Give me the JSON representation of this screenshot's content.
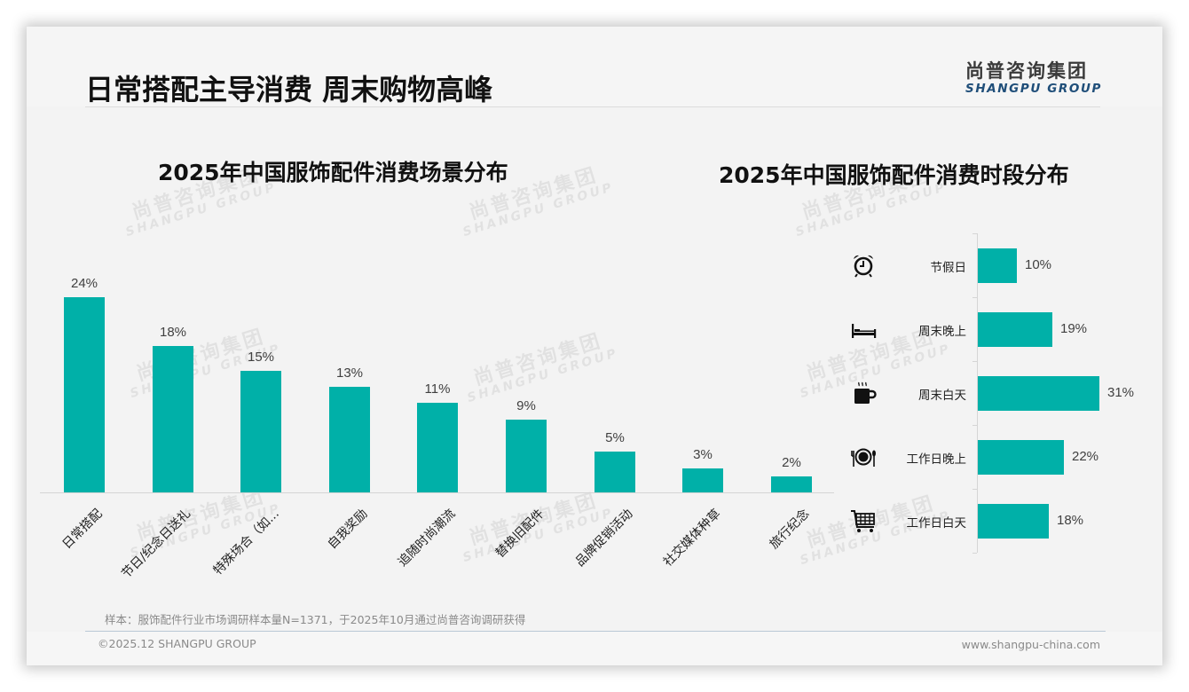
{
  "header": {
    "title": "日常搭配主导消费 周末购物高峰",
    "logo_cn": "尚普咨询集团",
    "logo_en": "SHANGPU GROUP"
  },
  "watermark": {
    "cn": "尚普咨询集团",
    "en": "SHANGPU GROUP"
  },
  "colors": {
    "bar": "#00B0A8",
    "logo_en": "#1F4E79",
    "text_dark": "#111111",
    "text_muted": "#8A8A8A"
  },
  "left_chart": {
    "title": "2025年中国服饰配件消费场景分布",
    "bars": [
      {
        "label": "日常搭配",
        "value": 24,
        "display": "24%"
      },
      {
        "label": "节日/纪念日送礼",
        "value": 18,
        "display": "18%"
      },
      {
        "label": "特殊场合（如...",
        "value": 15,
        "display": "15%"
      },
      {
        "label": "自我奖励",
        "value": 13,
        "display": "13%"
      },
      {
        "label": "追随时尚潮流",
        "value": 11,
        "display": "11%"
      },
      {
        "label": "替换旧配件",
        "value": 9,
        "display": "9%"
      },
      {
        "label": "品牌促销活动",
        "value": 5,
        "display": "5%"
      },
      {
        "label": "社交媒体种草",
        "value": 3,
        "display": "3%"
      },
      {
        "label": "旅行纪念",
        "value": 2,
        "display": "2%"
      }
    ]
  },
  "right_chart": {
    "title": "2025年中国服饰配件消费时段分布",
    "bars": [
      {
        "label": "节假日",
        "value": 10,
        "display": "10%",
        "icon": "alarm-clock-icon"
      },
      {
        "label": "周末晚上",
        "value": 19,
        "display": "19%",
        "icon": "bed-icon"
      },
      {
        "label": "周末白天",
        "value": 31,
        "display": "31%",
        "icon": "coffee-mug-icon"
      },
      {
        "label": "工作日晚上",
        "value": 22,
        "display": "22%",
        "icon": "plate-cutlery-icon"
      },
      {
        "label": "工作日白天",
        "value": 18,
        "display": "18%",
        "icon": "shopping-cart-icon"
      }
    ]
  },
  "footer": {
    "note": "样本：服饰配件行业市场调研样本量N=1371，于2025年10月通过尚普咨询调研获得",
    "copyright": "©2025.12 SHANGPU GROUP",
    "website": "www.shangpu-china.com"
  },
  "chart_data": [
    {
      "type": "bar",
      "title": "2025年中国服饰配件消费场景分布",
      "categories": [
        "日常搭配",
        "节日/纪念日送礼",
        "特殊场合（如...",
        "自我奖励",
        "追随时尚潮流",
        "替换旧配件",
        "品牌促销活动",
        "社交媒体种草",
        "旅行纪念"
      ],
      "values": [
        24,
        18,
        15,
        13,
        11,
        9,
        5,
        3,
        2
      ],
      "unit": "%",
      "xlabel": "",
      "ylabel": "",
      "orientation": "vertical",
      "grid": false,
      "data_labels": true,
      "color": "#00B0A8"
    },
    {
      "type": "bar",
      "title": "2025年中国服饰配件消费时段分布",
      "categories": [
        "节假日",
        "周末晚上",
        "周末白天",
        "工作日晚上",
        "工作日白天"
      ],
      "values": [
        10,
        19,
        31,
        22,
        18
      ],
      "unit": "%",
      "xlabel": "",
      "ylabel": "",
      "orientation": "horizontal",
      "grid": false,
      "data_labels": true,
      "color": "#00B0A8"
    }
  ]
}
